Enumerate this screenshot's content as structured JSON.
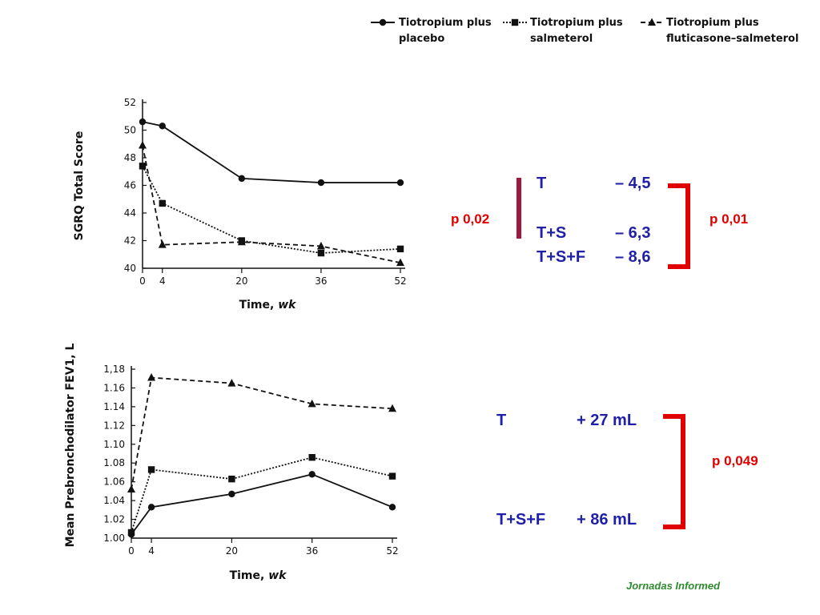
{
  "legend": [
    {
      "name": "Tiotropium plus placebo",
      "line1": "Tiotropium plus",
      "line2": "placebo",
      "marker": "circle",
      "dash": "solid"
    },
    {
      "name": "Tiotropium plus salmeterol",
      "line1": "Tiotropium plus",
      "line2": "salmeterol",
      "marker": "square",
      "dash": "dotted"
    },
    {
      "name": "Tiotropium plus fluticasone–salmeterol",
      "line1": "Tiotropium plus",
      "line2": "fluticasone–salmeterol",
      "marker": "triangle",
      "dash": "dashed"
    }
  ],
  "chart_data": [
    {
      "type": "line",
      "xlabel": "Time, wk",
      "ylabel": "SGRQ Total Score",
      "x_ticks": [
        0,
        4,
        20,
        36,
        52
      ],
      "y_ticks": [
        40,
        42,
        44,
        46,
        48,
        50,
        52
      ],
      "y_tick_labels": [
        "40",
        "42",
        "44",
        "46",
        "48",
        "50",
        "52"
      ],
      "xlim": [
        0,
        52
      ],
      "ylim": [
        40,
        52
      ],
      "series": [
        {
          "name": "Tiotropium plus placebo",
          "x": [
            0,
            4,
            20,
            36,
            52
          ],
          "y": [
            50.6,
            50.3,
            46.5,
            46.2,
            46.2
          ]
        },
        {
          "name": "Tiotropium plus salmeterol",
          "x": [
            0,
            4,
            20,
            36,
            52
          ],
          "y": [
            47.4,
            44.7,
            42.0,
            41.1,
            41.4
          ]
        },
        {
          "name": "Tiotropium plus fluticasone–salmeterol",
          "x": [
            0,
            4,
            20,
            36,
            52
          ],
          "y": [
            48.9,
            41.7,
            41.9,
            41.6,
            40.4
          ]
        }
      ]
    },
    {
      "type": "line",
      "xlabel": "Time, wk",
      "ylabel": "Mean Prebronchodilator FEV1, L",
      "x_ticks": [
        0,
        4,
        20,
        36,
        52
      ],
      "y_ticks": [
        1.0,
        1.02,
        1.04,
        1.06,
        1.08,
        1.1,
        1.12,
        1.14,
        1.16,
        1.18
      ],
      "y_tick_labels": [
        "1.00",
        "1.02",
        "1.04",
        "1.06",
        "1.08",
        "1.10",
        "1.12",
        "1.14",
        "1.16",
        "1,18"
      ],
      "xlim": [
        0,
        52
      ],
      "ylim": [
        1.0,
        1.18
      ],
      "series": [
        {
          "name": "Tiotropium plus placebo",
          "x": [
            0,
            4,
            20,
            36,
            52
          ],
          "y": [
            1.004,
            1.033,
            1.047,
            1.068,
            1.033
          ]
        },
        {
          "name": "Tiotropium plus salmeterol",
          "x": [
            0,
            4,
            20,
            36,
            52
          ],
          "y": [
            1.006,
            1.073,
            1.063,
            1.086,
            1.066
          ]
        },
        {
          "name": "Tiotropium plus fluticasone–salmeterol",
          "x": [
            0,
            4,
            20,
            36,
            52
          ],
          "y": [
            1.052,
            1.171,
            1.165,
            1.143,
            1.138
          ]
        }
      ]
    }
  ],
  "annotations": {
    "sgrq": {
      "t_label": "T",
      "t_value": "– 4,5",
      "ts_label": "T+S",
      "ts_value": "– 6,3",
      "tsf_label": "T+S+F",
      "tsf_value": "– 8,6",
      "p_left": "p 0,02",
      "p_right": "p 0,01"
    },
    "fev1": {
      "t_label": "T",
      "t_value": "+ 27 mL",
      "tsf_label": "T+S+F",
      "tsf_value": "+ 86 mL",
      "p_right": "p 0,049"
    }
  },
  "colors": {
    "accent_blue": "#1f1fa8",
    "accent_red": "#e00000",
    "dark_red": "#a0183c",
    "footer_green": "#2e8b2e"
  },
  "footer": "Jornadas Informed"
}
